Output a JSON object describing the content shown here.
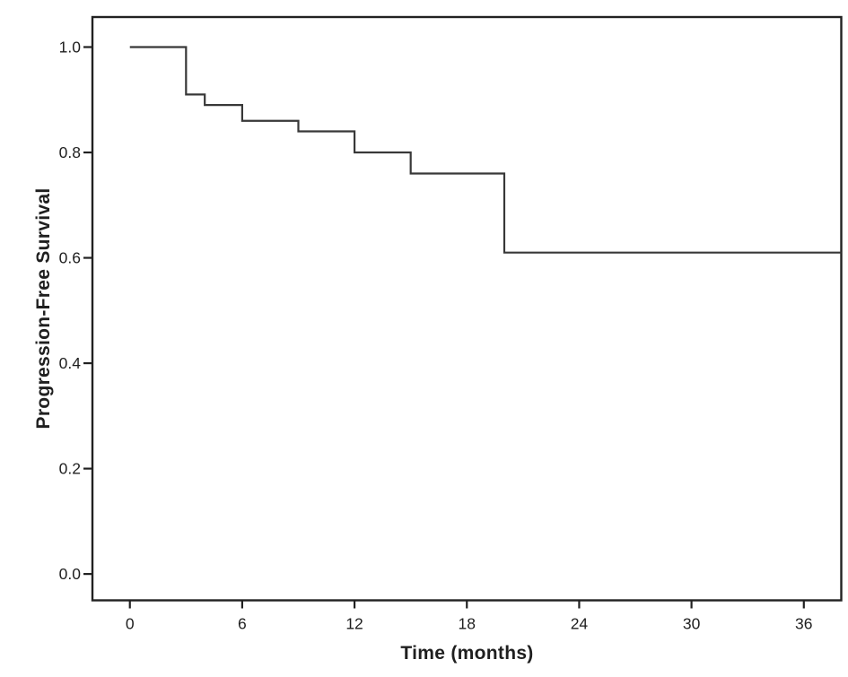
{
  "page": {
    "background_color": "#ffffff",
    "description": "Kaplan-Meier style step plot of progression-free survival over time"
  },
  "chart_data": {
    "type": "line",
    "subtype": "kaplan-meier-step",
    "title": "",
    "xlabel": "Time (months)",
    "ylabel": "Progression-Free Survival",
    "xlim": [
      -2,
      38
    ],
    "ylim": [
      -0.05,
      1.057
    ],
    "xticks": [
      0,
      6,
      12,
      18,
      24,
      30,
      36
    ],
    "xtick_labels": [
      "0",
      "6",
      "12",
      "18",
      "24",
      "30",
      "36"
    ],
    "yticks": [
      0.0,
      0.2,
      0.4,
      0.6,
      0.8,
      1.0
    ],
    "ytick_labels": [
      "0.0",
      "0.2",
      "0.4",
      "0.6",
      "0.8",
      "1.0"
    ],
    "grid": false,
    "legend": null,
    "axis_color": "#212121",
    "line_color": "#383838",
    "tick_label_color": "#1f1f1f",
    "series": [
      {
        "name": "Progression-Free Survival",
        "steps": [
          {
            "time": 0,
            "survival": 1.0
          },
          {
            "time": 3,
            "survival": 0.91
          },
          {
            "time": 4,
            "survival": 0.89
          },
          {
            "time": 6,
            "survival": 0.86
          },
          {
            "time": 9,
            "survival": 0.84
          },
          {
            "time": 12,
            "survival": 0.8
          },
          {
            "time": 15,
            "survival": 0.76
          },
          {
            "time": 20,
            "survival": 0.61
          }
        ],
        "end_time": 38,
        "censor_marks": []
      }
    ]
  }
}
